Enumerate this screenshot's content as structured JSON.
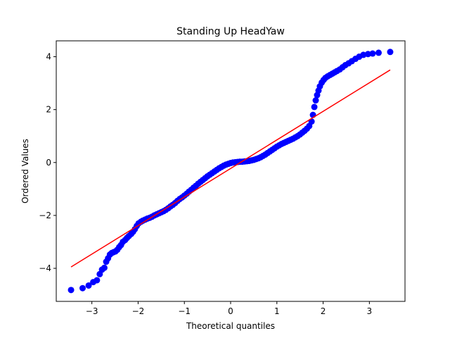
{
  "chart_data": {
    "type": "scatter",
    "title": "Standing Up HeadYaw",
    "xlabel": "Theoretical quantiles",
    "ylabel": "Ordered Values",
    "xlim": [
      -3.77,
      3.77
    ],
    "ylim": [
      -5.25,
      4.6
    ],
    "xticks": [
      -3,
      -2,
      -1,
      0,
      1,
      2,
      3
    ],
    "yticks": [
      -4,
      -2,
      0,
      2,
      4
    ],
    "xtick_labels": [
      "−3",
      "−2",
      "−1",
      "0",
      "1",
      "2",
      "3"
    ],
    "ytick_labels": [
      "−4",
      "−2",
      "0",
      "2",
      "4"
    ],
    "grid": false,
    "legend": "none",
    "point_color": "#0000ff",
    "line_color": "#ff0000",
    "fit_line": {
      "x": [
        -3.45,
        3.45
      ],
      "y": [
        -3.95,
        3.5
      ]
    },
    "series": [
      {
        "points": [
          [
            -3.45,
            -4.82
          ],
          [
            -3.2,
            -4.75
          ],
          [
            -3.07,
            -4.65
          ],
          [
            -2.97,
            -4.52
          ],
          [
            -2.89,
            -4.45
          ],
          [
            -2.83,
            -4.22
          ],
          [
            -2.78,
            -4.05
          ],
          [
            -2.73,
            -3.98
          ],
          [
            -2.69,
            -3.75
          ],
          [
            -2.65,
            -3.62
          ],
          [
            -2.61,
            -3.48
          ],
          [
            -2.57,
            -3.42
          ],
          [
            -2.53,
            -3.39
          ],
          [
            -2.49,
            -3.36
          ],
          [
            -2.45,
            -3.3
          ],
          [
            -2.41,
            -3.2
          ],
          [
            -2.37,
            -3.12
          ],
          [
            -2.33,
            -3.0
          ],
          [
            -2.28,
            -2.93
          ],
          [
            -2.24,
            -2.85
          ],
          [
            -2.2,
            -2.78
          ],
          [
            -2.15,
            -2.7
          ],
          [
            -2.11,
            -2.62
          ],
          [
            -2.07,
            -2.52
          ],
          [
            -2.03,
            -2.4
          ],
          [
            -1.99,
            -2.3
          ],
          [
            -1.94,
            -2.24
          ],
          [
            -1.9,
            -2.2
          ],
          [
            -1.85,
            -2.16
          ],
          [
            -1.8,
            -2.12
          ],
          [
            -1.75,
            -2.09
          ],
          [
            -1.7,
            -2.05
          ],
          [
            -1.65,
            -2.0
          ],
          [
            -1.6,
            -1.96
          ],
          [
            -1.55,
            -1.92
          ],
          [
            -1.5,
            -1.88
          ],
          [
            -1.45,
            -1.84
          ],
          [
            -1.4,
            -1.79
          ],
          [
            -1.35,
            -1.73
          ],
          [
            -1.3,
            -1.66
          ],
          [
            -1.25,
            -1.6
          ],
          [
            -1.2,
            -1.53
          ],
          [
            -1.15,
            -1.45
          ],
          [
            -1.1,
            -1.38
          ],
          [
            -1.05,
            -1.32
          ],
          [
            -1.0,
            -1.25
          ],
          [
            -0.95,
            -1.18
          ],
          [
            -0.9,
            -1.1
          ],
          [
            -0.85,
            -1.03
          ],
          [
            -0.8,
            -0.95
          ],
          [
            -0.75,
            -0.88
          ],
          [
            -0.7,
            -0.8
          ],
          [
            -0.65,
            -0.73
          ],
          [
            -0.6,
            -0.66
          ],
          [
            -0.55,
            -0.59
          ],
          [
            -0.5,
            -0.52
          ],
          [
            -0.45,
            -0.46
          ],
          [
            -0.4,
            -0.4
          ],
          [
            -0.35,
            -0.34
          ],
          [
            -0.3,
            -0.28
          ],
          [
            -0.25,
            -0.22
          ],
          [
            -0.2,
            -0.17
          ],
          [
            -0.15,
            -0.12
          ],
          [
            -0.1,
            -0.08
          ],
          [
            -0.05,
            -0.05
          ],
          [
            0.0,
            -0.02
          ],
          [
            0.05,
            0.0
          ],
          [
            0.1,
            0.01
          ],
          [
            0.15,
            0.02
          ],
          [
            0.2,
            0.03
          ],
          [
            0.25,
            0.03
          ],
          [
            0.3,
            0.04
          ],
          [
            0.35,
            0.05
          ],
          [
            0.4,
            0.06
          ],
          [
            0.45,
            0.08
          ],
          [
            0.5,
            0.1
          ],
          [
            0.55,
            0.13
          ],
          [
            0.6,
            0.16
          ],
          [
            0.65,
            0.2
          ],
          [
            0.7,
            0.25
          ],
          [
            0.75,
            0.3
          ],
          [
            0.8,
            0.36
          ],
          [
            0.85,
            0.42
          ],
          [
            0.9,
            0.48
          ],
          [
            0.95,
            0.54
          ],
          [
            1.0,
            0.6
          ],
          [
            1.05,
            0.65
          ],
          [
            1.1,
            0.7
          ],
          [
            1.15,
            0.74
          ],
          [
            1.2,
            0.78
          ],
          [
            1.25,
            0.82
          ],
          [
            1.3,
            0.86
          ],
          [
            1.35,
            0.9
          ],
          [
            1.4,
            0.95
          ],
          [
            1.45,
            1.0
          ],
          [
            1.5,
            1.06
          ],
          [
            1.55,
            1.13
          ],
          [
            1.6,
            1.2
          ],
          [
            1.65,
            1.28
          ],
          [
            1.7,
            1.38
          ],
          [
            1.75,
            1.55
          ],
          [
            1.78,
            1.8
          ],
          [
            1.81,
            2.1
          ],
          [
            1.84,
            2.35
          ],
          [
            1.87,
            2.55
          ],
          [
            1.9,
            2.72
          ],
          [
            1.93,
            2.88
          ],
          [
            1.97,
            3.02
          ],
          [
            2.01,
            3.12
          ],
          [
            2.05,
            3.2
          ],
          [
            2.1,
            3.26
          ],
          [
            2.15,
            3.31
          ],
          [
            2.2,
            3.36
          ],
          [
            2.25,
            3.41
          ],
          [
            2.3,
            3.46
          ],
          [
            2.36,
            3.52
          ],
          [
            2.42,
            3.6
          ],
          [
            2.48,
            3.68
          ],
          [
            2.55,
            3.75
          ],
          [
            2.62,
            3.83
          ],
          [
            2.7,
            3.92
          ],
          [
            2.78,
            4.0
          ],
          [
            2.87,
            4.07
          ],
          [
            2.97,
            4.1
          ],
          [
            3.07,
            4.12
          ],
          [
            3.2,
            4.15
          ],
          [
            3.45,
            4.18
          ]
        ]
      }
    ]
  }
}
